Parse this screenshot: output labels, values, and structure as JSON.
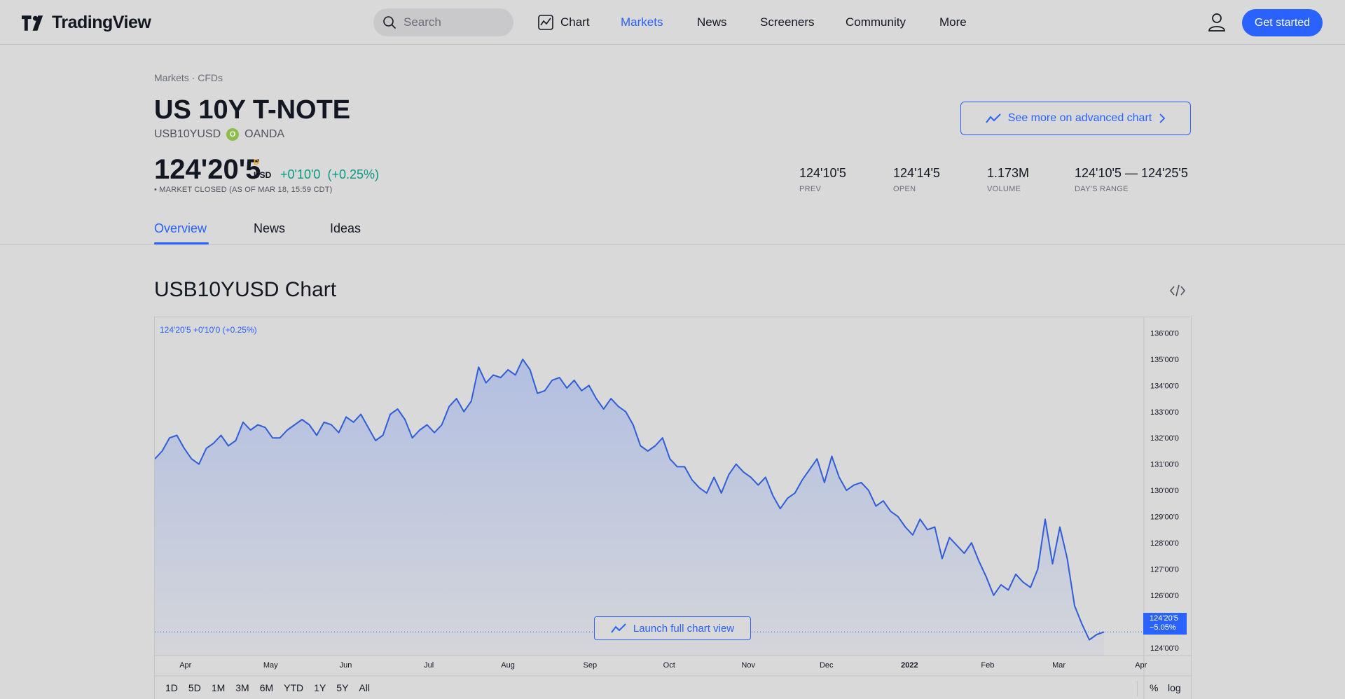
{
  "header": {
    "logo_text": "TradingView",
    "search_placeholder": "Search",
    "nav": {
      "chart": "Chart",
      "markets": "Markets",
      "news": "News",
      "screeners": "Screeners",
      "community": "Community",
      "more": "More"
    },
    "get_started": "Get started"
  },
  "symbol": {
    "breadcrumb": "Markets · CFDs",
    "title": "US 10Y T-NOTE",
    "ticker": "USB10YUSD",
    "exchange": "OANDA",
    "advanced_chart_label": "See more on advanced chart",
    "price": "124'20'5",
    "price_flag": "D",
    "currency": "USD",
    "change": "+0'10'0",
    "change_pct": "(+0.25%)",
    "market_status": "• MARKET CLOSED (AS OF MAR 18, 15:59 CDT)",
    "stats": [
      {
        "value": "124'10'5",
        "label": "PREV"
      },
      {
        "value": "124'14'5",
        "label": "OPEN"
      },
      {
        "value": "1.173M",
        "label": "VOLUME"
      },
      {
        "value": "124'10'5 — 124'25'5",
        "label": "DAY'S RANGE"
      }
    ]
  },
  "tabs": [
    "Overview",
    "News",
    "Ideas"
  ],
  "chart_section": {
    "title": "USB10YUSD Chart",
    "legend": "124'20'5  +0'10'0 (+0.25%)",
    "launch_label": "Launch full chart view",
    "last_price_label": "124'20'5",
    "last_change_label": "−5.05%",
    "ranges": [
      "1D",
      "5D",
      "1M",
      "3M",
      "6M",
      "YTD",
      "1Y",
      "5Y",
      "All"
    ],
    "right_controls": [
      "%",
      "log"
    ]
  },
  "colors": {
    "accent": "#2962ff",
    "positive": "#089981",
    "background": "#d9d9d9"
  },
  "chart_data": {
    "type": "area",
    "ylim": [
      123.7,
      136.6
    ],
    "y_ticks": [
      {
        "value": 136,
        "label": "136'00'0"
      },
      {
        "value": 135,
        "label": "135'00'0"
      },
      {
        "value": 134,
        "label": "134'00'0"
      },
      {
        "value": 133,
        "label": "133'00'0"
      },
      {
        "value": 132,
        "label": "132'00'0"
      },
      {
        "value": 131,
        "label": "131'00'0"
      },
      {
        "value": 130,
        "label": "130'00'0"
      },
      {
        "value": 129,
        "label": "129'00'0"
      },
      {
        "value": 128,
        "label": "128'00'0"
      },
      {
        "value": 127,
        "label": "127'00'0"
      },
      {
        "value": 126,
        "label": "126'00'0"
      },
      {
        "value": 125,
        "label": "125'00'0"
      },
      {
        "value": 124,
        "label": "124'00'0"
      }
    ],
    "x_ticks": [
      {
        "label": "Apr",
        "t": 0.031,
        "bold": false
      },
      {
        "label": "May",
        "t": 0.117,
        "bold": false
      },
      {
        "label": "Jun",
        "t": 0.193,
        "bold": false
      },
      {
        "label": "Jul",
        "t": 0.277,
        "bold": false
      },
      {
        "label": "Aug",
        "t": 0.357,
        "bold": false
      },
      {
        "label": "Sep",
        "t": 0.44,
        "bold": false
      },
      {
        "label": "Oct",
        "t": 0.52,
        "bold": false
      },
      {
        "label": "Nov",
        "t": 0.6,
        "bold": false
      },
      {
        "label": "Dec",
        "t": 0.679,
        "bold": false
      },
      {
        "label": "2022",
        "t": 0.763,
        "bold": true
      },
      {
        "label": "Feb",
        "t": 0.842,
        "bold": false
      },
      {
        "label": "Mar",
        "t": 0.914,
        "bold": false
      },
      {
        "label": "Apr",
        "t": 0.997,
        "bold": false
      }
    ],
    "last_value": 124.6,
    "values": [
      131.2,
      131.5,
      132.0,
      132.1,
      131.6,
      131.2,
      131.0,
      131.6,
      131.8,
      132.1,
      131.7,
      131.9,
      132.6,
      132.3,
      132.5,
      132.4,
      132.0,
      132.0,
      132.3,
      132.5,
      132.7,
      132.5,
      132.1,
      132.6,
      132.5,
      132.2,
      132.8,
      132.6,
      132.9,
      132.4,
      131.9,
      132.1,
      132.9,
      133.1,
      132.7,
      132.0,
      132.3,
      132.5,
      132.2,
      132.5,
      133.2,
      133.5,
      133.0,
      133.4,
      134.7,
      134.1,
      134.4,
      134.3,
      134.6,
      134.4,
      135.0,
      134.6,
      133.7,
      133.8,
      134.2,
      134.3,
      133.9,
      134.2,
      133.8,
      134.0,
      133.5,
      133.1,
      133.5,
      133.2,
      133.0,
      132.5,
      131.7,
      131.5,
      131.7,
      132.0,
      131.2,
      130.9,
      130.9,
      130.4,
      130.1,
      129.9,
      130.5,
      129.9,
      130.6,
      131.0,
      130.7,
      130.5,
      130.2,
      130.5,
      129.8,
      129.3,
      129.7,
      129.9,
      130.4,
      130.8,
      131.2,
      130.3,
      131.3,
      130.5,
      130.0,
      130.2,
      130.3,
      130.0,
      129.4,
      129.6,
      129.2,
      129.0,
      128.6,
      128.3,
      128.9,
      128.5,
      128.6,
      127.4,
      128.2,
      127.9,
      127.6,
      128.0,
      127.3,
      126.7,
      126.0,
      126.4,
      126.2,
      126.8,
      126.5,
      126.3,
      127.0,
      128.9,
      127.2,
      128.6,
      127.4,
      125.6,
      124.9,
      124.3,
      124.5,
      124.6
    ],
    "volume_note": ""
  }
}
